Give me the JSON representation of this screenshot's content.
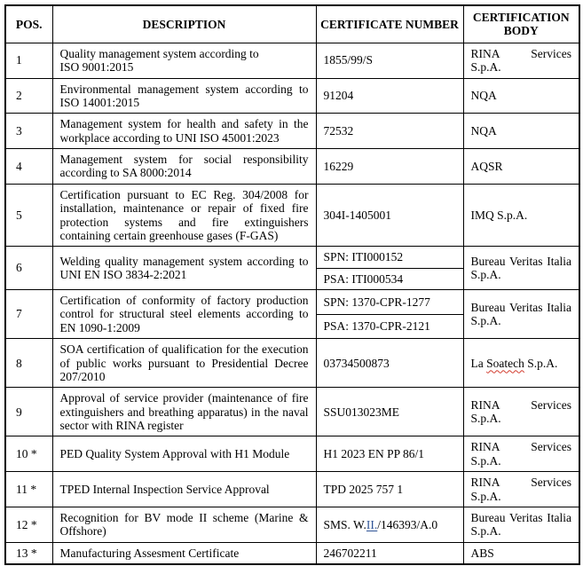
{
  "table": {
    "headers": [
      "POS.",
      "DESCRIPTION",
      "CERTIFICATE NUMBER",
      "CERTIFICATION BODY"
    ],
    "colors": {
      "link_blue": "#2F5496",
      "spellcheck_red": "#D23B2E"
    },
    "rows": [
      {
        "pos": "1",
        "description": "Quality management system according to\nISO 9001:2015",
        "certificates": [
          "1855/99/S"
        ],
        "body": "RINA Services S.p.A."
      },
      {
        "pos": "2",
        "description": "Environmental management system according to ISO 14001:2015",
        "certificates": [
          "91204"
        ],
        "body": "NQA"
      },
      {
        "pos": "3",
        "description": "Management system for health and safety in the workplace according to UNI ISO 45001:2023",
        "certificates": [
          "72532"
        ],
        "body": "NQA"
      },
      {
        "pos": "4",
        "description": "Management system for social responsibility according to SA 8000:2014",
        "certificates": [
          "16229"
        ],
        "body": "AQSR"
      },
      {
        "pos": "5",
        "description": "Certification pursuant to EC Reg. 304/2008 for installation, maintenance or repair of fixed fire protection systems and fire extinguishers containing certain greenhouse gases (F-GAS)",
        "certificates": [
          "304I-1405001"
        ],
        "body": "IMQ S.p.A."
      },
      {
        "pos": "6",
        "description": "Welding quality management system according to UNI EN ISO 3834-2:2021",
        "certificates": [
          "SPN: ITI000152",
          "PSA: ITI000534"
        ],
        "body": "Bureau Veritas Italia S.p.A."
      },
      {
        "pos": "7",
        "description": "Certification of conformity of factory production control for structural steel elements according to EN 1090-1:2009",
        "certificates": [
          "SPN: 1370-CPR-1277",
          "PSA: 1370-CPR-2121"
        ],
        "body": "Bureau Veritas Italia S.p.A."
      },
      {
        "pos": "8",
        "description": "SOA certification of qualification for the execution of public works pursuant to Presidential Decree 207/2010",
        "certificates": [
          "03734500873"
        ],
        "body": [
          {
            "t": "La "
          },
          {
            "t": "Soatech",
            "s": "spellcheck"
          },
          {
            "t": " S.p.A."
          }
        ]
      },
      {
        "pos": "9",
        "description": "Approval of service provider (maintenance of fire extinguishers and breathing apparatus) in the naval sector with RINA register",
        "certificates": [
          "SSU013023ME"
        ],
        "body": "RINA Services S.p.A."
      },
      {
        "pos": "10 *",
        "description": "PED Quality System Approval with H1 Module",
        "certificates": [
          "H1 2023 EN PP 86/1"
        ],
        "body": "RINA Services S.p.A."
      },
      {
        "pos": "11 *",
        "description": "TPED Internal Inspection Service Approval",
        "certificates": [
          "TPD 2025 757 1"
        ],
        "body": "RINA Services S.p.A."
      },
      {
        "pos": "12 *",
        "description": "Recognition for BV mode II scheme (Marine & Offshore)",
        "certificates": [
          [
            {
              "t": "SMS. W."
            },
            {
              "t": "II.",
              "s": "link"
            },
            {
              "t": "/146393/A.0"
            }
          ]
        ],
        "body": "Bureau Veritas Italia S.p.A."
      },
      {
        "pos": "13 *",
        "description": "Manufacturing Assesment Certificate",
        "certificates": [
          "246702211"
        ],
        "body": "ABS"
      }
    ]
  }
}
